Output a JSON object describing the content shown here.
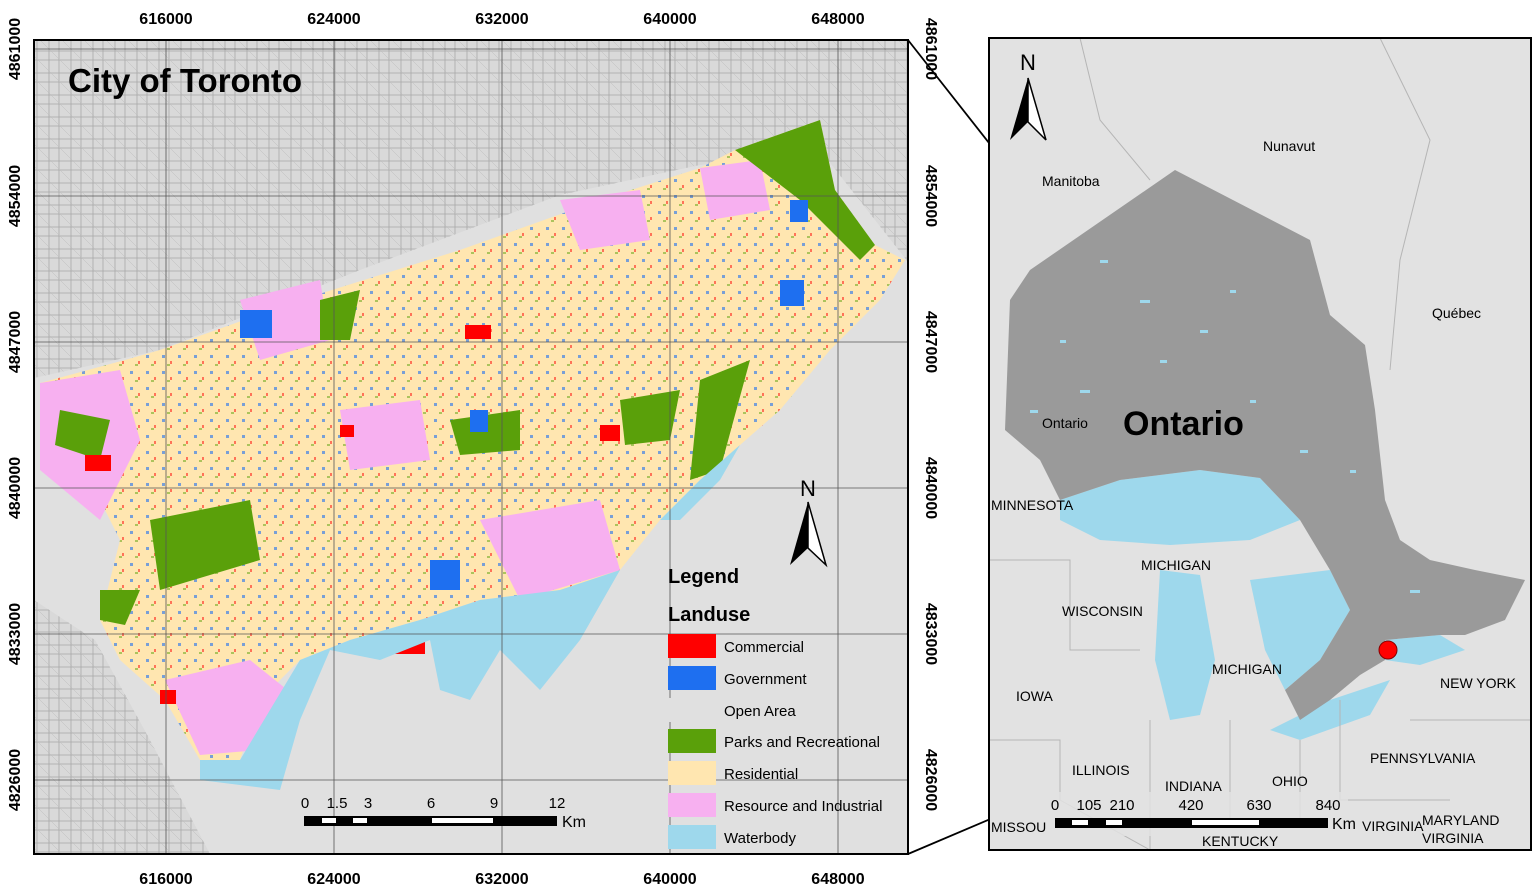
{
  "toronto_map": {
    "title": "City of Toronto",
    "x_ticks": [
      "616000",
      "624000",
      "632000",
      "640000",
      "648000"
    ],
    "y_ticks": [
      "4861000",
      "4854000",
      "4847000",
      "4840000",
      "4833000",
      "4826000"
    ],
    "north_label": "N",
    "scale": {
      "ticks": [
        "0",
        "1.5",
        "3",
        "6",
        "9",
        "12"
      ],
      "unit": "Km"
    },
    "legend": {
      "heading": "Legend",
      "subheading": "Landuse",
      "items": [
        {
          "label": "Commercial",
          "color": "#ff0000"
        },
        {
          "label": "Government",
          "color": "#1e6ff0"
        },
        {
          "label": "Open Area",
          "color": "#e0e0e0"
        },
        {
          "label": "Parks and Recreational",
          "color": "#5aa00a"
        },
        {
          "label": "Residential",
          "color": "#ffe6b0"
        },
        {
          "label": "Resource and Industrial",
          "color": "#f7b0f0"
        },
        {
          "label": "Waterbody",
          "color": "#9ed8ec"
        }
      ]
    }
  },
  "ontario_map": {
    "title": "Ontario",
    "north_label": "N",
    "region_labels": {
      "nunavut": "Nunavut",
      "manitoba": "Manitoba",
      "quebec": "Québec",
      "ontario_small": "Ontario",
      "minnesota": "MINNESOTA",
      "michigan_upper": "MICHIGAN",
      "wisconsin": "WISCONSIN",
      "michigan_lower": "MICHIGAN",
      "iowa": "IOWA",
      "illinois": "ILLINOIS",
      "indiana": "INDIANA",
      "ohio": "OHIO",
      "new_york": "NEW YORK",
      "pennsylvania": "PENNSYLVANIA",
      "maryland": "MARYLAND",
      "virginia": "VIRGINIA",
      "virginia_partial": "VIRGINIA",
      "missouri_partial": "MISSOU",
      "kentucky": "KENTUCKY"
    },
    "scale": {
      "ticks": [
        "0",
        "105",
        "210",
        "420",
        "630",
        "840"
      ],
      "unit": "Km"
    },
    "colors": {
      "ontario": "#9a9a9a",
      "lakes": "#9ed8ec",
      "land": "#e2e2e2",
      "marker": "#ff0000"
    }
  }
}
